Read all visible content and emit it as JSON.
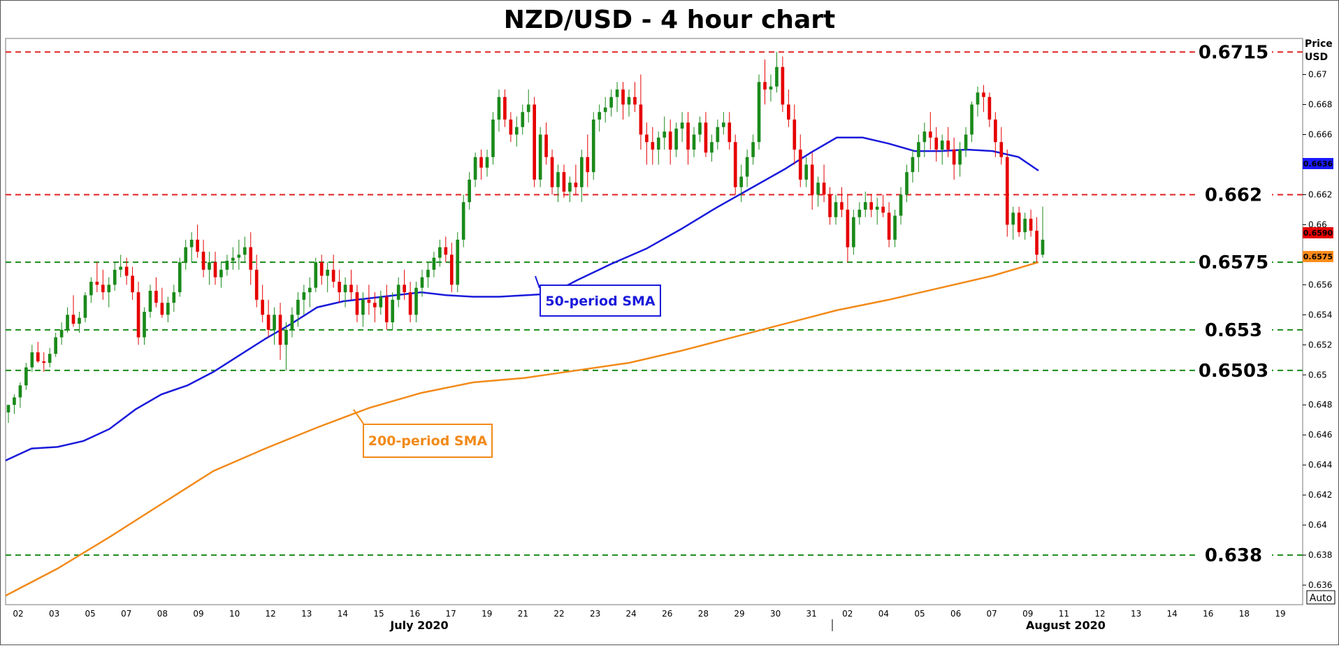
{
  "chart_data": {
    "type": "candlestick",
    "title": "NZD/USD - 4 hour chart",
    "y_axis_title": [
      "Price",
      "USD"
    ],
    "y_axis": {
      "range": [
        0.6347,
        0.6724
      ],
      "position": "right",
      "ticks": [
        "0.636",
        "0.638",
        "0.64",
        "0.642",
        "0.644",
        "0.646",
        "0.648",
        "0.65",
        "0.652",
        "0.654",
        "0.656",
        "0.658",
        "0.66",
        "0.662",
        "0.664",
        "0.666",
        "0.668",
        "0.67"
      ]
    },
    "x_axis": {
      "date_ticks": [
        "02",
        "03",
        "05",
        "07",
        "08",
        "09",
        "10",
        "12",
        "13",
        "14",
        "15",
        "16",
        "17",
        "19",
        "21",
        "22",
        "23",
        "24",
        "26",
        "28",
        "29",
        "30",
        "31",
        "02",
        "04",
        "05",
        "06",
        "07",
        "09",
        "11",
        "12",
        "13",
        "14",
        "16",
        "18",
        "19"
      ],
      "month_labels": [
        "July 2020",
        "August 2020"
      ]
    },
    "horizontal_levels": [
      {
        "label": "0.6715",
        "value": 0.6715,
        "color": "#e02020"
      },
      {
        "label": "0.662",
        "value": 0.662,
        "color": "#e02020"
      },
      {
        "label": "0.6575",
        "value": 0.6575,
        "color": "#1a8a1a"
      },
      {
        "label": "0.653",
        "value": 0.653,
        "color": "#1a8a1a"
      },
      {
        "label": "0.6503",
        "value": 0.6503,
        "color": "#1a8a1a"
      },
      {
        "label": "0.638",
        "value": 0.638,
        "color": "#1a8a1a"
      }
    ],
    "price_badges": [
      {
        "label": "0.6590",
        "color": "#e60000"
      },
      {
        "label": "0.6575",
        "color": "#ff8c1a"
      },
      {
        "label": "0.6636",
        "color": "#1a1aff"
      }
    ],
    "auto_label": "Auto",
    "series": [
      {
        "name": "50-period SMA",
        "color": "#1a1adb",
        "points": [
          [
            0,
            0.6443
          ],
          [
            30,
            0.6451
          ],
          [
            60,
            0.6452
          ],
          [
            90,
            0.6456
          ],
          [
            120,
            0.6464
          ],
          [
            150,
            0.6477
          ],
          [
            180,
            0.6487
          ],
          [
            210,
            0.6493
          ],
          [
            240,
            0.6502
          ],
          [
            270,
            0.6513
          ],
          [
            300,
            0.6524
          ],
          [
            330,
            0.6534
          ],
          [
            360,
            0.6545
          ],
          [
            390,
            0.6549
          ],
          [
            420,
            0.6551
          ],
          [
            450,
            0.6553
          ],
          [
            480,
            0.6555
          ],
          [
            510,
            0.6553
          ],
          [
            540,
            0.6552
          ],
          [
            570,
            0.6552
          ],
          [
            600,
            0.6553
          ],
          [
            630,
            0.6554
          ],
          [
            660,
            0.6563
          ],
          [
            700,
            0.6574
          ],
          [
            740,
            0.6584
          ],
          [
            780,
            0.6597
          ],
          [
            820,
            0.6611
          ],
          [
            860,
            0.6624
          ],
          [
            900,
            0.6637
          ],
          [
            930,
            0.6648
          ],
          [
            960,
            0.6658
          ],
          [
            990,
            0.6658
          ],
          [
            1020,
            0.6654
          ],
          [
            1050,
            0.6649
          ],
          [
            1080,
            0.6649
          ],
          [
            1110,
            0.665
          ],
          [
            1140,
            0.6649
          ],
          [
            1170,
            0.6645
          ],
          [
            1193,
            0.6636
          ]
        ]
      },
      {
        "name": "200-period SMA",
        "color": "#f28a1a",
        "points": [
          [
            0,
            0.6353
          ],
          [
            60,
            0.6371
          ],
          [
            120,
            0.6392
          ],
          [
            180,
            0.6414
          ],
          [
            240,
            0.6436
          ],
          [
            300,
            0.6451
          ],
          [
            360,
            0.6465
          ],
          [
            420,
            0.6478
          ],
          [
            480,
            0.6488
          ],
          [
            540,
            0.6495
          ],
          [
            600,
            0.6498
          ],
          [
            660,
            0.6503
          ],
          [
            720,
            0.6508
          ],
          [
            780,
            0.6516
          ],
          [
            840,
            0.6525
          ],
          [
            900,
            0.6534
          ],
          [
            960,
            0.6543
          ],
          [
            1020,
            0.655
          ],
          [
            1080,
            0.6558
          ],
          [
            1140,
            0.6566
          ],
          [
            1193,
            0.6575
          ]
        ]
      }
    ],
    "annotations": [
      {
        "text": "50-period SMA",
        "color": "#1a1adb"
      },
      {
        "text": "200-period SMA",
        "color": "#f28a1a"
      }
    ],
    "candles": [
      [
        0.6475,
        0.648,
        0.6468,
        0.648
      ],
      [
        0.648,
        0.6487,
        0.6474,
        0.6485
      ],
      [
        0.6485,
        0.6495,
        0.6478,
        0.6493
      ],
      [
        0.6493,
        0.6508,
        0.649,
        0.6505
      ],
      [
        0.6505,
        0.652,
        0.6502,
        0.6515
      ],
      [
        0.6515,
        0.6522,
        0.6508,
        0.6509
      ],
      [
        0.6509,
        0.6515,
        0.6502,
        0.6508
      ],
      [
        0.6508,
        0.6518,
        0.6505,
        0.6514
      ],
      [
        0.6514,
        0.6528,
        0.6512,
        0.6525
      ],
      [
        0.6525,
        0.6535,
        0.652,
        0.653
      ],
      [
        0.653,
        0.6545,
        0.6528,
        0.654
      ],
      [
        0.654,
        0.6553,
        0.6532,
        0.6534
      ],
      [
        0.6534,
        0.6542,
        0.6528,
        0.6538
      ],
      [
        0.6538,
        0.6555,
        0.6535,
        0.6553
      ],
      [
        0.6553,
        0.6565,
        0.6548,
        0.6562
      ],
      [
        0.6562,
        0.6575,
        0.6555,
        0.656
      ],
      [
        0.656,
        0.657,
        0.655,
        0.6555
      ],
      [
        0.6555,
        0.6565,
        0.6545,
        0.656
      ],
      [
        0.656,
        0.6575,
        0.6556,
        0.657
      ],
      [
        0.657,
        0.658,
        0.6565,
        0.6572
      ],
      [
        0.6572,
        0.6578,
        0.656,
        0.6566
      ],
      [
        0.6566,
        0.6572,
        0.655,
        0.6555
      ],
      [
        0.6555,
        0.6562,
        0.652,
        0.6525
      ],
      [
        0.6525,
        0.6545,
        0.652,
        0.6542
      ],
      [
        0.6542,
        0.656,
        0.6538,
        0.6556
      ],
      [
        0.6556,
        0.6565,
        0.6545,
        0.6548
      ],
      [
        0.6548,
        0.6558,
        0.6538,
        0.654
      ],
      [
        0.654,
        0.6552,
        0.6535,
        0.6548
      ],
      [
        0.6548,
        0.656,
        0.6542,
        0.6555
      ],
      [
        0.6555,
        0.6578,
        0.6552,
        0.6575
      ],
      [
        0.6575,
        0.659,
        0.657,
        0.6585
      ],
      [
        0.6585,
        0.6595,
        0.6575,
        0.659
      ],
      [
        0.659,
        0.66,
        0.6578,
        0.6582
      ],
      [
        0.6582,
        0.659,
        0.6565,
        0.657
      ],
      [
        0.657,
        0.6582,
        0.656,
        0.6575
      ],
      [
        0.6575,
        0.6582,
        0.656,
        0.6565
      ],
      [
        0.6565,
        0.6575,
        0.6558,
        0.657
      ],
      [
        0.657,
        0.658,
        0.6566,
        0.6576
      ],
      [
        0.6576,
        0.6585,
        0.657,
        0.6578
      ],
      [
        0.6578,
        0.659,
        0.657,
        0.658
      ],
      [
        0.658,
        0.6592,
        0.6575,
        0.6585
      ],
      [
        0.6585,
        0.6595,
        0.656,
        0.657
      ],
      [
        0.657,
        0.658,
        0.6545,
        0.655
      ],
      [
        0.655,
        0.656,
        0.6535,
        0.654
      ],
      [
        0.654,
        0.655,
        0.6525,
        0.653
      ],
      [
        0.653,
        0.6545,
        0.652,
        0.654
      ],
      [
        0.654,
        0.6548,
        0.651,
        0.652
      ],
      [
        0.652,
        0.6535,
        0.6503,
        0.653
      ],
      [
        0.653,
        0.6545,
        0.6525,
        0.654
      ],
      [
        0.654,
        0.6555,
        0.6532,
        0.655
      ],
      [
        0.655,
        0.656,
        0.654,
        0.6555
      ],
      [
        0.6555,
        0.6565,
        0.6545,
        0.6558
      ],
      [
        0.6558,
        0.6578,
        0.6555,
        0.6575
      ],
      [
        0.6575,
        0.658,
        0.656,
        0.6566
      ],
      [
        0.6566,
        0.6575,
        0.6555,
        0.657
      ],
      [
        0.657,
        0.658,
        0.6558,
        0.6562
      ],
      [
        0.6562,
        0.657,
        0.6548,
        0.6555
      ],
      [
        0.6555,
        0.6565,
        0.6545,
        0.656
      ],
      [
        0.656,
        0.657,
        0.655,
        0.6555
      ],
      [
        0.6555,
        0.656,
        0.6535,
        0.654
      ],
      [
        0.654,
        0.6555,
        0.6532,
        0.655
      ],
      [
        0.655,
        0.656,
        0.654,
        0.6548
      ],
      [
        0.6548,
        0.6555,
        0.6535,
        0.6545
      ],
      [
        0.6545,
        0.6556,
        0.654,
        0.6552
      ],
      [
        0.6552,
        0.656,
        0.653,
        0.6535
      ],
      [
        0.6535,
        0.6555,
        0.653,
        0.655
      ],
      [
        0.655,
        0.6565,
        0.6545,
        0.656
      ],
      [
        0.656,
        0.657,
        0.655,
        0.6555
      ],
      [
        0.6555,
        0.6562,
        0.6535,
        0.654
      ],
      [
        0.654,
        0.6562,
        0.6535,
        0.6558
      ],
      [
        0.6558,
        0.657,
        0.6552,
        0.6565
      ],
      [
        0.6565,
        0.6575,
        0.6558,
        0.657
      ],
      [
        0.657,
        0.6582,
        0.6565,
        0.6578
      ],
      [
        0.6578,
        0.659,
        0.6572,
        0.6585
      ],
      [
        0.6585,
        0.6592,
        0.6575,
        0.658
      ],
      [
        0.658,
        0.6588,
        0.6555,
        0.656
      ],
      [
        0.656,
        0.6595,
        0.6555,
        0.659
      ],
      [
        0.659,
        0.662,
        0.6585,
        0.6615
      ],
      [
        0.6615,
        0.6635,
        0.661,
        0.663
      ],
      [
        0.663,
        0.6648,
        0.6625,
        0.6645
      ],
      [
        0.6645,
        0.665,
        0.663,
        0.6638
      ],
      [
        0.6638,
        0.665,
        0.6632,
        0.6645
      ],
      [
        0.6645,
        0.6675,
        0.664,
        0.667
      ],
      [
        0.667,
        0.669,
        0.6662,
        0.6685
      ],
      [
        0.6685,
        0.669,
        0.6665,
        0.667
      ],
      [
        0.667,
        0.6675,
        0.6655,
        0.666
      ],
      [
        0.666,
        0.6672,
        0.6652,
        0.6665
      ],
      [
        0.6665,
        0.668,
        0.666,
        0.6675
      ],
      [
        0.6675,
        0.669,
        0.6668,
        0.668
      ],
      [
        0.668,
        0.6685,
        0.6625,
        0.663
      ],
      [
        0.663,
        0.6665,
        0.6625,
        0.666
      ],
      [
        0.666,
        0.6668,
        0.664,
        0.6645
      ],
      [
        0.6645,
        0.665,
        0.662,
        0.6625
      ],
      [
        0.6625,
        0.664,
        0.6615,
        0.6635
      ],
      [
        0.6635,
        0.664,
        0.6618,
        0.6622
      ],
      [
        0.6622,
        0.6632,
        0.6615,
        0.6628
      ],
      [
        0.6628,
        0.664,
        0.662,
        0.6625
      ],
      [
        0.6625,
        0.665,
        0.6615,
        0.6645
      ],
      [
        0.6645,
        0.666,
        0.6625,
        0.6635
      ],
      [
        0.6635,
        0.6675,
        0.663,
        0.667
      ],
      [
        0.667,
        0.668,
        0.6662,
        0.6675
      ],
      [
        0.6675,
        0.6685,
        0.6668,
        0.6678
      ],
      [
        0.6678,
        0.669,
        0.6672,
        0.6685
      ],
      [
        0.6685,
        0.6695,
        0.6675,
        0.669
      ],
      [
        0.669,
        0.6695,
        0.667,
        0.668
      ],
      [
        0.668,
        0.669,
        0.6672,
        0.6685
      ],
      [
        0.6685,
        0.6695,
        0.6675,
        0.668
      ],
      [
        0.668,
        0.67,
        0.665,
        0.666
      ],
      [
        0.666,
        0.6668,
        0.664,
        0.6655
      ],
      [
        0.6655,
        0.6665,
        0.664,
        0.665
      ],
      [
        0.665,
        0.6662,
        0.664,
        0.6658
      ],
      [
        0.6658,
        0.6672,
        0.665,
        0.6662
      ],
      [
        0.6662,
        0.667,
        0.664,
        0.665
      ],
      [
        0.665,
        0.6668,
        0.6645,
        0.6664
      ],
      [
        0.6664,
        0.6675,
        0.6655,
        0.6668
      ],
      [
        0.6668,
        0.6675,
        0.664,
        0.665
      ],
      [
        0.665,
        0.6665,
        0.6645,
        0.666
      ],
      [
        0.666,
        0.6672,
        0.6655,
        0.6668
      ],
      [
        0.6668,
        0.6675,
        0.6645,
        0.6648
      ],
      [
        0.6648,
        0.666,
        0.6642,
        0.6655
      ],
      [
        0.6655,
        0.667,
        0.665,
        0.6665
      ],
      [
        0.6665,
        0.6675,
        0.666,
        0.6668
      ],
      [
        0.6668,
        0.6675,
        0.665,
        0.6655
      ],
      [
        0.6655,
        0.666,
        0.662,
        0.6625
      ],
      [
        0.6625,
        0.664,
        0.6615,
        0.6632
      ],
      [
        0.6632,
        0.665,
        0.6625,
        0.6645
      ],
      [
        0.6645,
        0.666,
        0.664,
        0.6655
      ],
      [
        0.6655,
        0.67,
        0.665,
        0.6695
      ],
      [
        0.6695,
        0.671,
        0.668,
        0.669
      ],
      [
        0.669,
        0.67,
        0.6682,
        0.6692
      ],
      [
        0.6692,
        0.6715,
        0.6688,
        0.6705
      ],
      [
        0.6705,
        0.6712,
        0.6675,
        0.668
      ],
      [
        0.668,
        0.669,
        0.6665,
        0.667
      ],
      [
        0.667,
        0.668,
        0.664,
        0.665
      ],
      [
        0.665,
        0.666,
        0.6625,
        0.663
      ],
      [
        0.663,
        0.6645,
        0.6625,
        0.664
      ],
      [
        0.664,
        0.6648,
        0.661,
        0.662
      ],
      [
        0.662,
        0.6632,
        0.6612,
        0.6628
      ],
      [
        0.6628,
        0.664,
        0.6615,
        0.662
      ],
      [
        0.662,
        0.6625,
        0.66,
        0.6605
      ],
      [
        0.6605,
        0.662,
        0.66,
        0.6615
      ],
      [
        0.6615,
        0.6625,
        0.6605,
        0.661
      ],
      [
        0.661,
        0.662,
        0.6575,
        0.6585
      ],
      [
        0.6585,
        0.661,
        0.658,
        0.6605
      ],
      [
        0.6605,
        0.6615,
        0.66,
        0.661
      ],
      [
        0.661,
        0.6622,
        0.6605,
        0.6615
      ],
      [
        0.6615,
        0.662,
        0.6605,
        0.661
      ],
      [
        0.661,
        0.6618,
        0.66,
        0.6612
      ],
      [
        0.6612,
        0.662,
        0.6605,
        0.6608
      ],
      [
        0.6608,
        0.6615,
        0.6585,
        0.659
      ],
      [
        0.659,
        0.661,
        0.6585,
        0.6606
      ],
      [
        0.6606,
        0.6625,
        0.66,
        0.662
      ],
      [
        0.662,
        0.664,
        0.6615,
        0.6635
      ],
      [
        0.6635,
        0.665,
        0.6628,
        0.6645
      ],
      [
        0.6645,
        0.666,
        0.6635,
        0.6655
      ],
      [
        0.6655,
        0.6668,
        0.6645,
        0.6662
      ],
      [
        0.6662,
        0.6675,
        0.665,
        0.6658
      ],
      [
        0.6658,
        0.6665,
        0.6642,
        0.665
      ],
      [
        0.665,
        0.666,
        0.664,
        0.6656
      ],
      [
        0.6656,
        0.6665,
        0.6645,
        0.665
      ],
      [
        0.665,
        0.6658,
        0.663,
        0.664
      ],
      [
        0.664,
        0.6655,
        0.6632,
        0.665
      ],
      [
        0.665,
        0.6665,
        0.6645,
        0.666
      ],
      [
        0.666,
        0.6682,
        0.6655,
        0.668
      ],
      [
        0.668,
        0.6692,
        0.6672,
        0.6688
      ],
      [
        0.6688,
        0.6693,
        0.6675,
        0.6685
      ],
      [
        0.6685,
        0.6688,
        0.6665,
        0.667
      ],
      [
        0.667,
        0.6675,
        0.6645,
        0.6655
      ],
      [
        0.6655,
        0.6665,
        0.664,
        0.6645
      ],
      [
        0.6645,
        0.665,
        0.6592,
        0.66
      ],
      [
        0.66,
        0.6612,
        0.659,
        0.6608
      ],
      [
        0.6608,
        0.6612,
        0.6592,
        0.6595
      ],
      [
        0.6595,
        0.6608,
        0.659,
        0.6604
      ],
      [
        0.6604,
        0.661,
        0.6592,
        0.6596
      ],
      [
        0.6596,
        0.6605,
        0.6575,
        0.658
      ],
      [
        0.658,
        0.6612,
        0.6578,
        0.659
      ]
    ]
  }
}
